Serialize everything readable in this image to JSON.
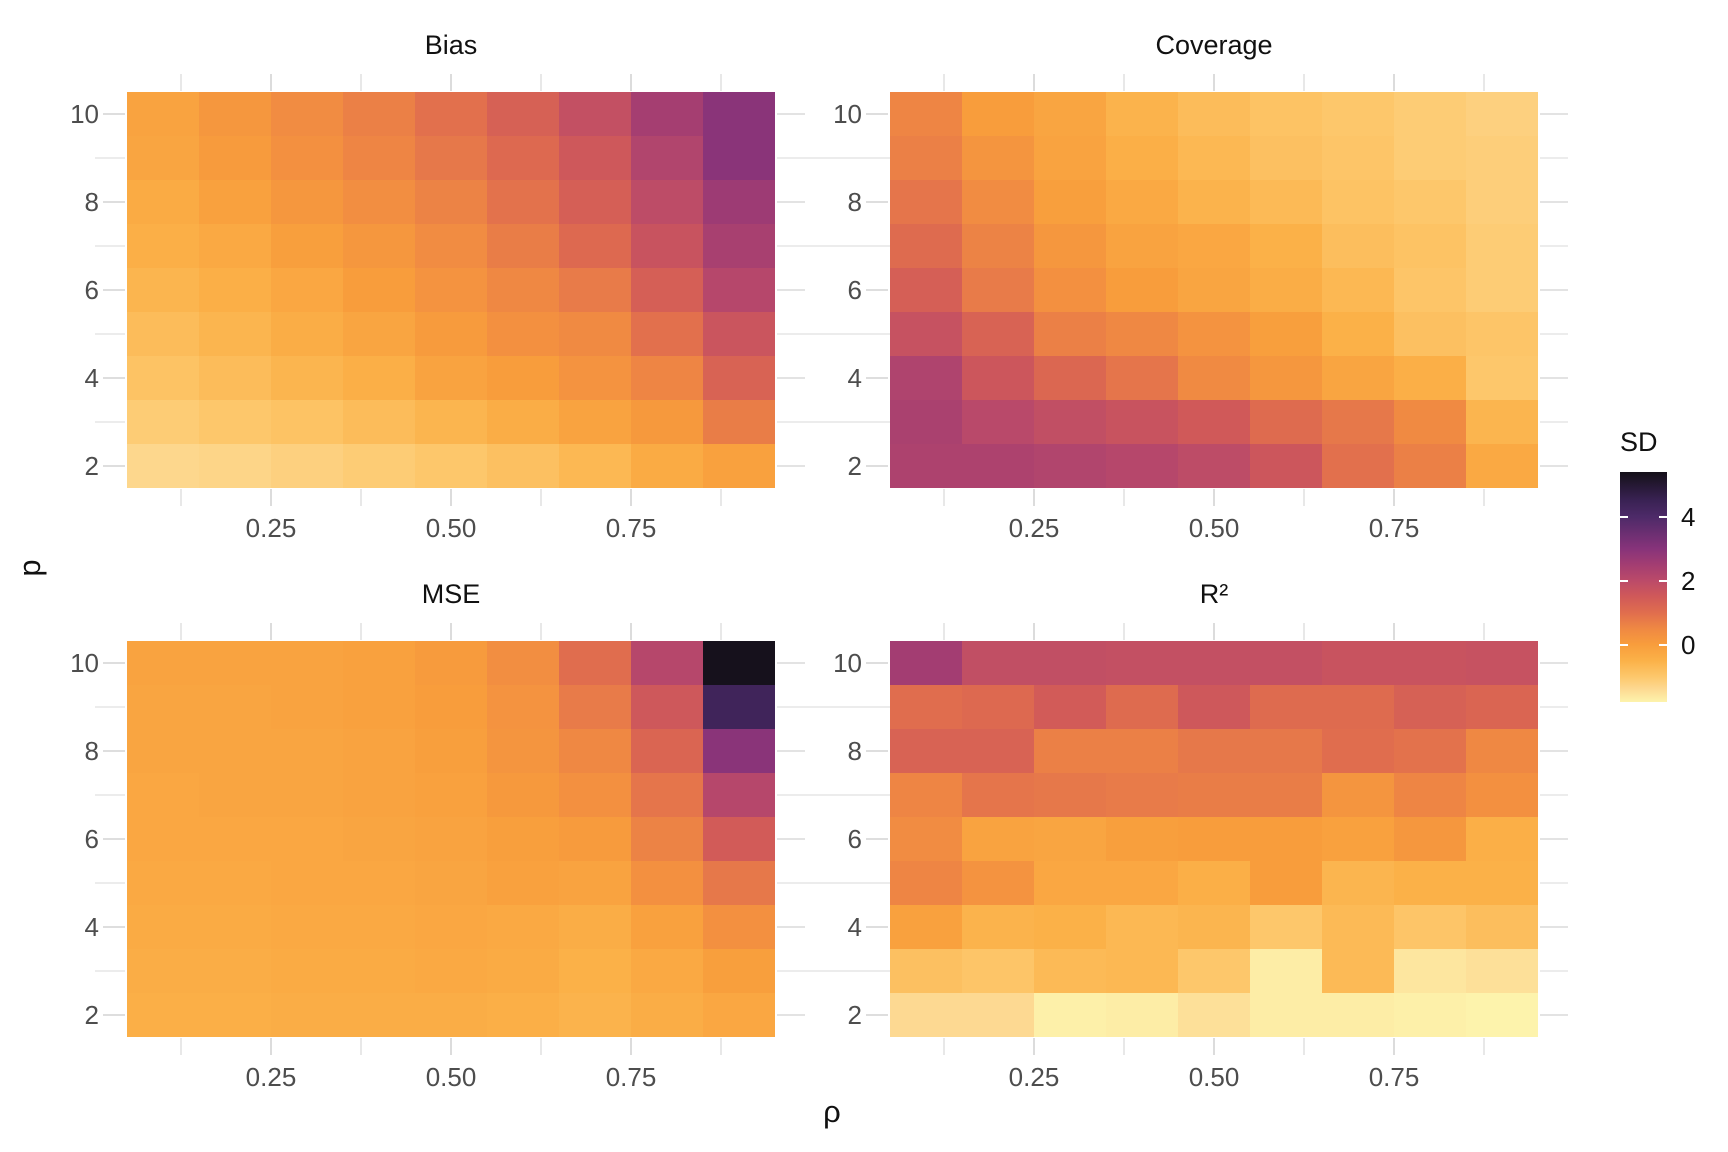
{
  "figure": {
    "background": "#ffffff",
    "description": "2x2 faceted heatmap grid of simulation results colored by SD"
  },
  "axes": {
    "x_label": "ρ",
    "y_label": "p",
    "x_tick_labels": [
      "0.25",
      "0.50",
      "0.75"
    ],
    "x_tick_values": [
      0.25,
      0.5,
      0.75
    ],
    "y_tick_labels": [
      "10",
      "8",
      "6",
      "4",
      "2"
    ],
    "y_tick_values": [
      10,
      8,
      6,
      4,
      2
    ],
    "x_range": [
      0.05,
      0.95
    ],
    "y_range": [
      1.5,
      10.5
    ]
  },
  "legend": {
    "title": "SD",
    "tick_labels": [
      "4",
      "2",
      "0"
    ],
    "tick_values": [
      4,
      2,
      0
    ],
    "position": "right"
  },
  "colormap": {
    "name": "magma-reversed",
    "domain": [
      -1.8,
      5.4
    ],
    "anchors": [
      [
        5.4,
        "#141019"
      ],
      [
        4.5,
        "#3a2254"
      ],
      [
        4.0,
        "#4d2a68"
      ],
      [
        3.0,
        "#87337a"
      ],
      [
        2.5,
        "#a33d72"
      ],
      [
        2.0,
        "#bb4a69"
      ],
      [
        1.5,
        "#d05959"
      ],
      [
        1.0,
        "#e06d4e"
      ],
      [
        0.5,
        "#ef8843"
      ],
      [
        0.0,
        "#f89d3c"
      ],
      [
        -0.5,
        "#fbb148"
      ],
      [
        -1.0,
        "#fdc76b"
      ],
      [
        -1.4,
        "#fdd992"
      ],
      [
        -1.8,
        "#fdf3ac"
      ]
    ]
  },
  "chart_data": [
    {
      "type": "heatmap",
      "title": "Bias",
      "xlabel": "ρ",
      "ylabel": "p",
      "fill_label": "SD",
      "x": [
        0.1,
        0.2,
        0.3,
        0.4,
        0.5,
        0.6,
        0.7,
        0.8,
        0.9
      ],
      "y": [
        10,
        9,
        8,
        7,
        6,
        5,
        4,
        3,
        2
      ],
      "values": [
        [
          -0.15,
          0.15,
          0.4,
          0.65,
          0.95,
          1.3,
          1.8,
          2.45,
          2.95
        ],
        [
          -0.2,
          0.05,
          0.3,
          0.55,
          0.8,
          1.1,
          1.55,
          2.2,
          2.95
        ],
        [
          -0.35,
          -0.1,
          0.15,
          0.35,
          0.6,
          0.9,
          1.35,
          1.95,
          2.6
        ],
        [
          -0.45,
          -0.3,
          -0.05,
          0.15,
          0.4,
          0.7,
          1.1,
          1.7,
          2.4
        ],
        [
          -0.6,
          -0.45,
          -0.25,
          0.0,
          0.25,
          0.5,
          0.75,
          1.35,
          2.1
        ],
        [
          -0.75,
          -0.6,
          -0.4,
          -0.2,
          0.05,
          0.3,
          0.45,
          0.95,
          1.65
        ],
        [
          -0.9,
          -0.75,
          -0.6,
          -0.45,
          -0.15,
          0.0,
          0.25,
          0.55,
          1.25
        ],
        [
          -1.1,
          -1.0,
          -0.9,
          -0.75,
          -0.6,
          -0.4,
          -0.15,
          0.1,
          0.7
        ],
        [
          -1.35,
          -1.3,
          -1.2,
          -1.1,
          -1.0,
          -0.85,
          -0.65,
          -0.35,
          -0.1
        ]
      ]
    },
    {
      "type": "heatmap",
      "title": "Coverage",
      "xlabel": "ρ",
      "ylabel": "p",
      "fill_label": "SD",
      "x": [
        0.1,
        0.2,
        0.3,
        0.4,
        0.5,
        0.6,
        0.7,
        0.8,
        0.9
      ],
      "y": [
        10,
        9,
        8,
        7,
        6,
        5,
        4,
        3,
        2
      ],
      "values": [
        [
          0.55,
          0.0,
          -0.2,
          -0.55,
          -0.75,
          -0.9,
          -1.0,
          -1.1,
          -1.2
        ],
        [
          0.65,
          0.2,
          -0.15,
          -0.45,
          -0.65,
          -0.85,
          -0.95,
          -1.1,
          -1.15
        ],
        [
          0.85,
          0.4,
          -0.05,
          -0.3,
          -0.55,
          -0.7,
          -0.9,
          -1.0,
          -1.15
        ],
        [
          1.05,
          0.6,
          0.15,
          -0.15,
          -0.25,
          -0.5,
          -0.8,
          -0.9,
          -1.1
        ],
        [
          1.35,
          0.75,
          0.3,
          0.0,
          -0.2,
          -0.4,
          -0.65,
          -0.95,
          -1.1
        ],
        [
          1.75,
          1.25,
          0.65,
          0.5,
          0.25,
          -0.05,
          -0.5,
          -0.85,
          -0.95
        ],
        [
          2.25,
          1.6,
          1.15,
          0.85,
          0.45,
          0.15,
          -0.2,
          -0.45,
          -1.0
        ],
        [
          2.35,
          2.05,
          1.85,
          1.7,
          1.5,
          1.05,
          0.8,
          0.45,
          -0.6
        ],
        [
          2.3,
          2.3,
          2.2,
          2.1,
          1.95,
          1.6,
          0.95,
          0.65,
          -0.3
        ]
      ]
    },
    {
      "type": "heatmap",
      "title": "MSE",
      "xlabel": "ρ",
      "ylabel": "p",
      "fill_label": "SD",
      "x": [
        0.1,
        0.2,
        0.3,
        0.4,
        0.5,
        0.6,
        0.7,
        0.8,
        0.9
      ],
      "y": [
        10,
        9,
        8,
        7,
        6,
        5,
        4,
        3,
        2
      ],
      "values": [
        [
          -0.15,
          -0.15,
          -0.15,
          -0.1,
          0.05,
          0.35,
          1.0,
          2.1,
          5.35
        ],
        [
          -0.2,
          -0.2,
          -0.15,
          -0.1,
          0.0,
          0.25,
          0.75,
          1.55,
          4.35
        ],
        [
          -0.2,
          -0.2,
          -0.2,
          -0.15,
          -0.05,
          0.2,
          0.5,
          1.2,
          2.95
        ],
        [
          -0.25,
          -0.2,
          -0.2,
          -0.15,
          -0.1,
          0.1,
          0.3,
          0.85,
          2.1
        ],
        [
          -0.25,
          -0.25,
          -0.25,
          -0.2,
          -0.15,
          -0.05,
          0.05,
          0.6,
          1.45
        ],
        [
          -0.3,
          -0.3,
          -0.25,
          -0.25,
          -0.2,
          -0.1,
          -0.15,
          0.3,
          0.8
        ],
        [
          -0.35,
          -0.35,
          -0.3,
          -0.3,
          -0.25,
          -0.3,
          -0.4,
          -0.1,
          0.3
        ],
        [
          -0.4,
          -0.4,
          -0.35,
          -0.35,
          -0.3,
          -0.35,
          -0.5,
          -0.3,
          -0.05
        ],
        [
          -0.45,
          -0.45,
          -0.4,
          -0.4,
          -0.4,
          -0.45,
          -0.55,
          -0.4,
          -0.25
        ]
      ]
    },
    {
      "type": "heatmap",
      "title": "R²",
      "xlabel": "ρ",
      "ylabel": "p",
      "fill_label": "SD",
      "x": [
        0.1,
        0.2,
        0.3,
        0.4,
        0.5,
        0.6,
        0.7,
        0.8,
        0.9
      ],
      "y": [
        10,
        9,
        8,
        7,
        6,
        5,
        4,
        3,
        2
      ],
      "values": [
        [
          2.5,
          1.85,
          1.85,
          1.8,
          1.8,
          1.8,
          1.7,
          1.7,
          1.75
        ],
        [
          1.0,
          1.1,
          1.45,
          1.05,
          1.55,
          1.05,
          1.05,
          1.3,
          1.2
        ],
        [
          1.25,
          1.25,
          0.65,
          0.65,
          0.8,
          0.8,
          1.0,
          0.9,
          0.5
        ],
        [
          0.55,
          0.85,
          0.8,
          0.75,
          0.7,
          0.7,
          0.2,
          0.55,
          0.3
        ],
        [
          0.4,
          -0.15,
          -0.2,
          -0.05,
          0.0,
          0.0,
          -0.1,
          0.15,
          -0.45
        ],
        [
          0.55,
          0.25,
          -0.25,
          -0.25,
          -0.45,
          0.0,
          -0.6,
          -0.5,
          -0.5
        ],
        [
          -0.1,
          -0.55,
          -0.5,
          -0.65,
          -0.6,
          -1.0,
          -0.7,
          -0.95,
          -0.8
        ],
        [
          -0.85,
          -0.95,
          -0.7,
          -0.65,
          -1.0,
          -1.7,
          -0.7,
          -1.6,
          -1.5
        ],
        [
          -1.4,
          -1.4,
          -1.75,
          -1.7,
          -1.5,
          -1.7,
          -1.7,
          -1.75,
          -1.8
        ]
      ]
    }
  ]
}
